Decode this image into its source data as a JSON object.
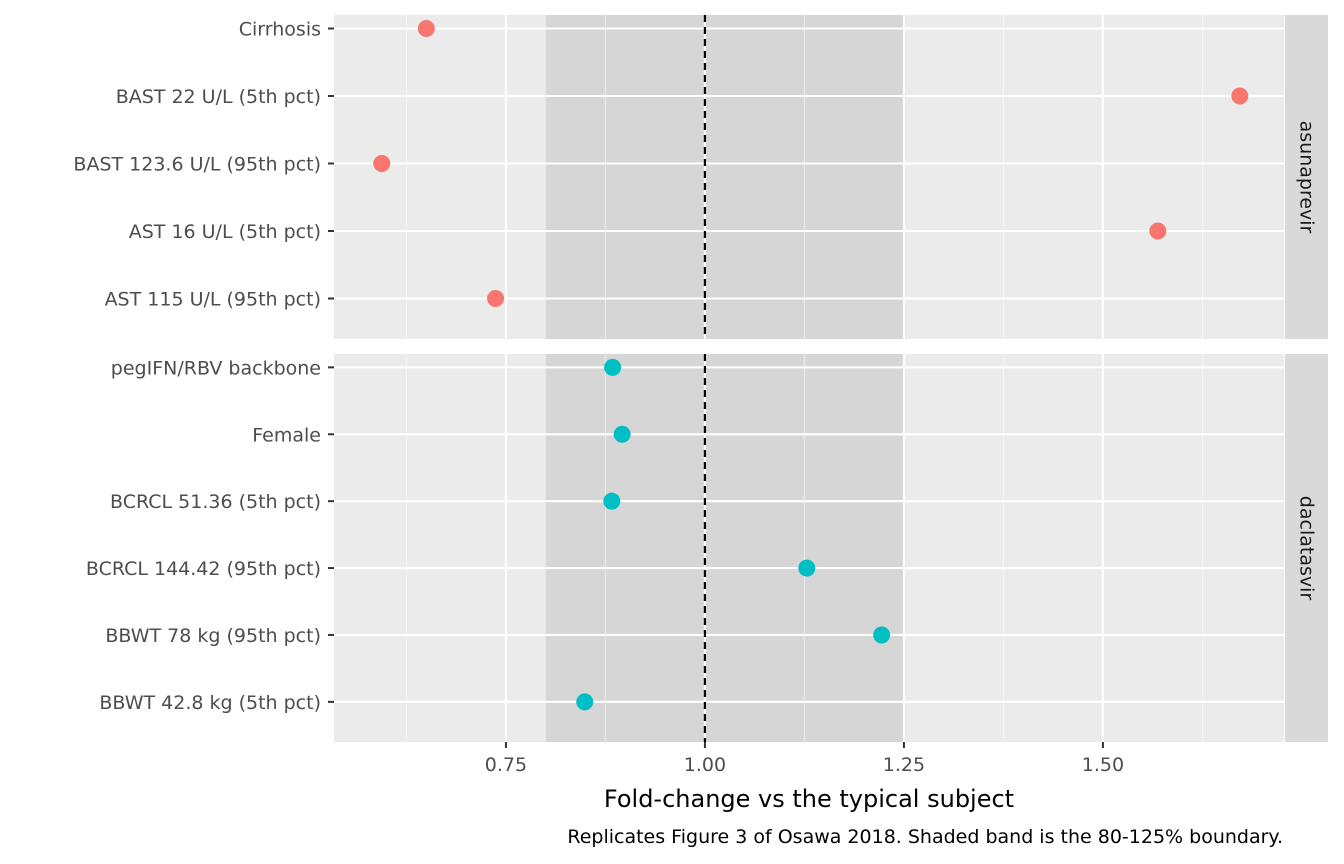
{
  "chart_data": {
    "type": "scatter",
    "xlabel": "Fold-change vs the typical subject",
    "caption": "Replicates Figure 3 of Osawa 2018. Shaded band is the 80-125% boundary.",
    "xlim": [
      0.534,
      1.7275
    ],
    "x_ticks": [
      0.75,
      1.0,
      1.25,
      1.5
    ],
    "x_tick_labels": [
      "0.75",
      "1.00",
      "1.25",
      "1.50"
    ],
    "reference_line": 1.0,
    "band": [
      0.8,
      1.25
    ],
    "grid": true,
    "colors": {
      "asunaprevir": "#F8766D",
      "daclatasvir": "#00BFC4",
      "panel_bg": "#EBEBEB",
      "band": "#D6D6D6",
      "strip_bg": "#D9D9D9",
      "grid": "#FFFFFF"
    },
    "panels": [
      {
        "name": "asunaprevir",
        "points": [
          {
            "label": "Cirrhosis",
            "value": 0.65
          },
          {
            "label": "BAST 22 U/L (5th pct)",
            "value": 1.672
          },
          {
            "label": "BAST 123.6 U/L (95th pct)",
            "value": 0.594
          },
          {
            "label": "AST 16 U/L (5th pct)",
            "value": 1.569
          },
          {
            "label": "AST 115 U/L (95th pct)",
            "value": 0.737
          }
        ]
      },
      {
        "name": "daclatasvir",
        "points": [
          {
            "label": "pegIFN/RBV backbone",
            "value": 0.884
          },
          {
            "label": "Female",
            "value": 0.896
          },
          {
            "label": "BCRCL 51.36 (5th pct)",
            "value": 0.883
          },
          {
            "label": "BCRCL 144.42 (95th pct)",
            "value": 1.128
          },
          {
            "label": "BBWT 78 kg (95th pct)",
            "value": 1.222
          },
          {
            "label": "BBWT 42.8 kg (5th pct)",
            "value": 0.849
          }
        ]
      }
    ]
  }
}
